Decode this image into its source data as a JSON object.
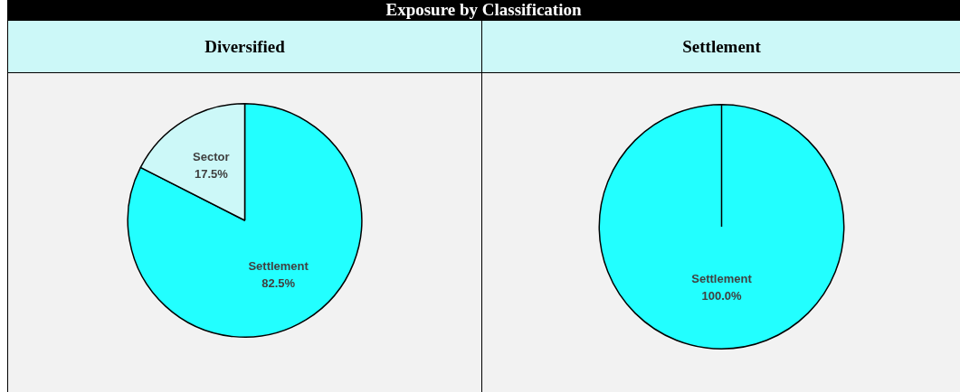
{
  "chart_data": [
    {
      "type": "pie",
      "title": "Exposure by Classification",
      "subtitle": "Diversified",
      "categories": [
        "Settlement",
        "Sector"
      ],
      "values": [
        82.5,
        17.5
      ],
      "value_labels": [
        "82.5%",
        "17.5%"
      ],
      "colors": [
        "#22ffff",
        "#ccf8f8"
      ],
      "legend": false
    },
    {
      "type": "pie",
      "subtitle": "Settlement",
      "categories": [
        "Settlement"
      ],
      "values": [
        100
      ],
      "value_labels": [
        "100.0%"
      ],
      "colors": [
        "#22ffff"
      ],
      "legend": false
    }
  ]
}
